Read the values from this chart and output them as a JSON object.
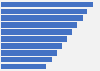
{
  "values": [
    117,
    110,
    104,
    97,
    90,
    84,
    78,
    72,
    65,
    57
  ],
  "bar_color": "#4472c4",
  "background_color": "#f2f2f2",
  "xlim": [
    0,
    125
  ],
  "bar_height": 0.82,
  "num_bars": 10,
  "figsize": [
    1.0,
    0.71
  ],
  "dpi": 100
}
